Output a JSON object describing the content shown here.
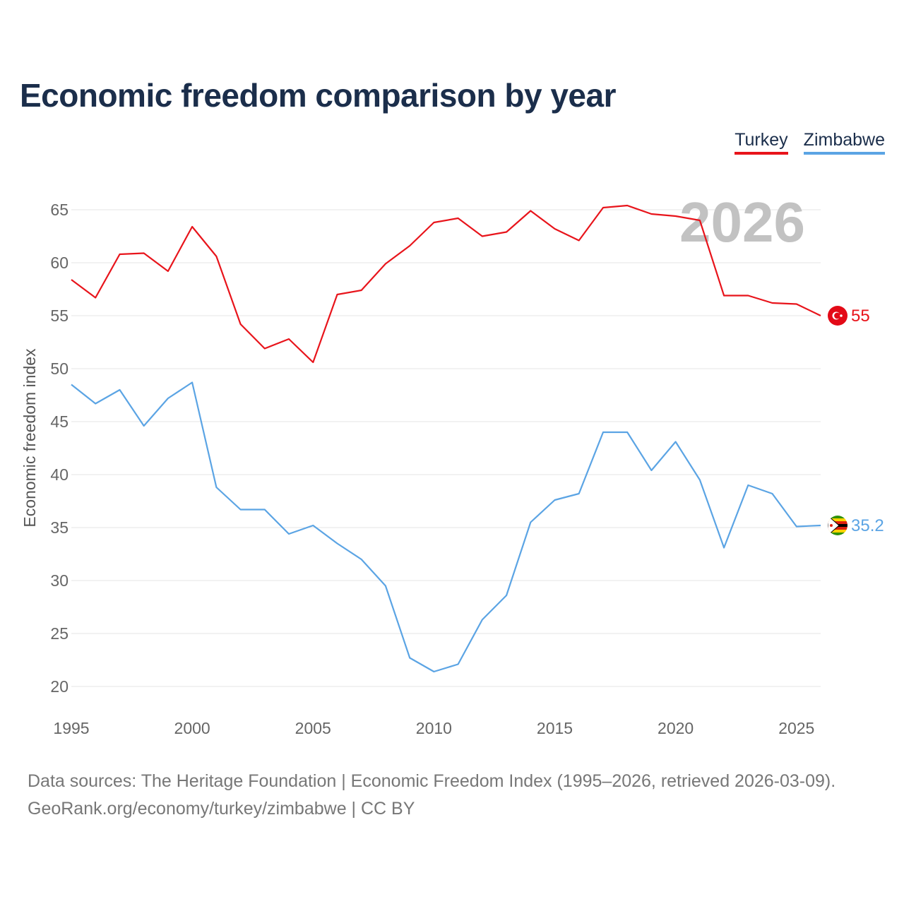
{
  "title": "Economic freedom comparison by year",
  "legend": {
    "turkey": "Turkey",
    "zimbabwe": "Zimbabwe"
  },
  "colors": {
    "turkey": "#e8141b",
    "zimbabwe": "#5ba4e4",
    "grid": "#e6e6e6"
  },
  "year_watermark": "2026",
  "footer": {
    "line1": "Data sources: The Heritage Foundation | Economic Freedom Index (1995–2026, retrieved 2026-03-09).",
    "line2": "GeoRank.org/economy/turkey/zimbabwe | CC BY"
  },
  "chart_data": {
    "type": "line",
    "title": "Economic freedom comparison by year",
    "xlabel": "",
    "ylabel": "Economic freedom index",
    "xlim": [
      1995,
      2026
    ],
    "ylim": [
      20,
      65
    ],
    "grid": true,
    "xticks": [
      1995,
      2000,
      2005,
      2010,
      2015,
      2020,
      2025
    ],
    "yticks": [
      20,
      25,
      30,
      35,
      40,
      45,
      50,
      55,
      60,
      65
    ],
    "x": [
      1995,
      1996,
      1997,
      1998,
      1999,
      2000,
      2001,
      2002,
      2003,
      2004,
      2005,
      2006,
      2007,
      2008,
      2009,
      2010,
      2011,
      2012,
      2013,
      2014,
      2015,
      2016,
      2017,
      2018,
      2019,
      2020,
      2021,
      2022,
      2023,
      2024,
      2025,
      2026
    ],
    "series": [
      {
        "name": "Turkey",
        "color": "#e8141b",
        "end_label": "55",
        "values": [
          58.4,
          56.7,
          60.8,
          60.9,
          59.2,
          63.4,
          60.6,
          54.2,
          51.9,
          52.8,
          50.6,
          57.0,
          57.4,
          59.9,
          61.6,
          63.8,
          64.2,
          62.5,
          62.9,
          64.9,
          63.2,
          62.1,
          65.2,
          65.4,
          64.6,
          64.4,
          64.0,
          56.9,
          56.9,
          56.2,
          56.1,
          55.0
        ]
      },
      {
        "name": "Zimbabwe",
        "color": "#5ba4e4",
        "end_label": "35.2",
        "values": [
          48.5,
          46.7,
          48.0,
          44.6,
          47.2,
          48.7,
          38.8,
          36.7,
          36.7,
          34.4,
          35.2,
          33.5,
          32.0,
          29.5,
          22.7,
          21.4,
          22.1,
          26.3,
          28.6,
          35.5,
          37.6,
          38.2,
          44.0,
          44.0,
          40.4,
          43.1,
          39.5,
          33.1,
          39.0,
          38.2,
          35.1,
          35.2
        ]
      }
    ]
  }
}
